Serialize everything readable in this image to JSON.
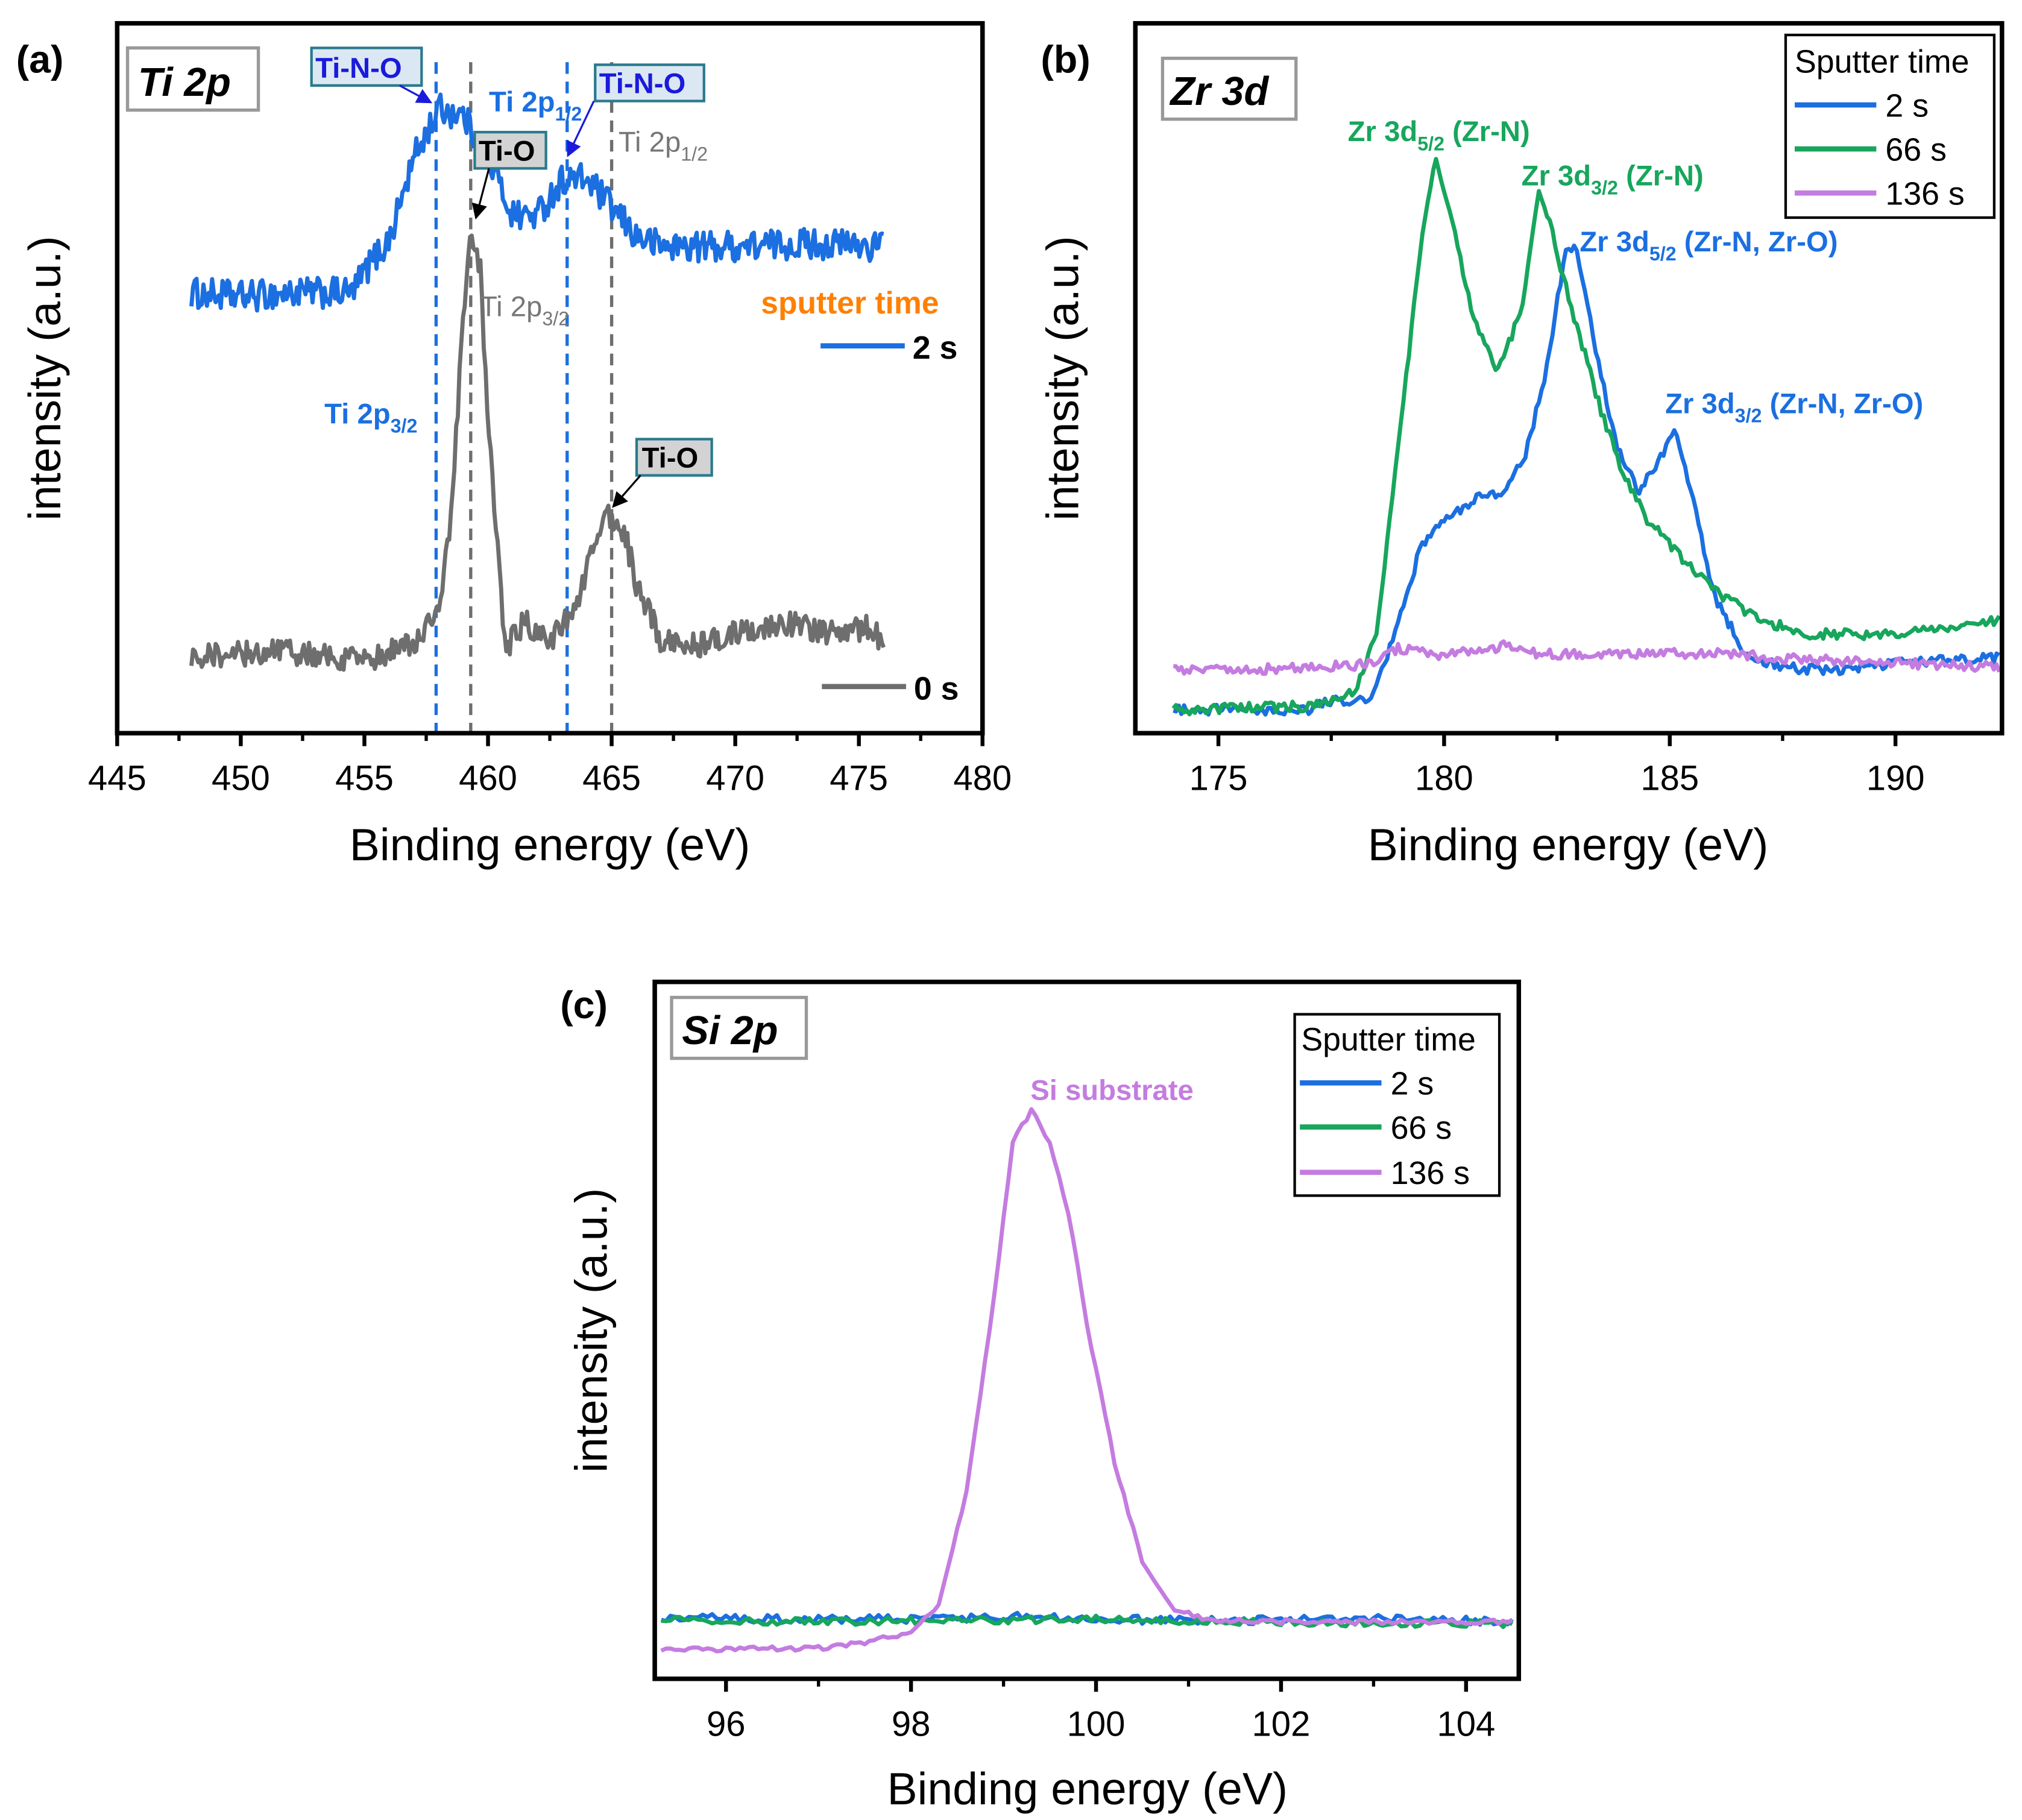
{
  "colors": {
    "blue": "#1b6fe0",
    "gray": "#6e6e6e",
    "green": "#17a65c",
    "purple": "#c47ce0",
    "orange": "#ff8000",
    "tag_blue": "#1a1adc",
    "tag_border": "#2a7a8c"
  },
  "chart_data": [
    {
      "id": "a",
      "type": "line",
      "panel_label": "(a)",
      "title": "Ti 2p",
      "xlabel": "Binding energy (eV)",
      "ylabel": "intensity (a.u.)",
      "xlim": [
        445,
        480
      ],
      "ylim": [
        0,
        100
      ],
      "xticks": [
        445,
        450,
        455,
        460,
        465,
        470,
        475,
        480
      ],
      "legend_title": "sputter time",
      "series": [
        {
          "name": "2 s",
          "color": "#1b6fe0",
          "noise": 2.2,
          "x": [
            448,
            450,
            452,
            454.5,
            455.2,
            456,
            457,
            458,
            459,
            460,
            461,
            462,
            463,
            464,
            465,
            466,
            467,
            470,
            473,
            476
          ],
          "y": [
            62,
            61.5,
            62,
            62,
            66,
            69.5,
            81,
            88,
            87,
            81,
            73,
            73,
            78,
            78,
            74,
            70,
            68.6,
            68.6,
            69,
            68.6
          ]
        },
        {
          "name": "0 s",
          "color": "#6e6e6e",
          "noise": 1.8,
          "x": [
            448,
            452,
            455,
            457,
            458,
            458.5,
            459,
            459.3,
            459.7,
            460,
            460.3,
            460.7,
            461.5,
            462.5,
            463.5,
            464,
            464.8,
            465.5,
            466,
            467,
            468,
            470,
            472,
            474,
            475.5,
            476
          ],
          "y": [
            11,
            11.5,
            10,
            13,
            16.6,
            30,
            58,
            72,
            65,
            43,
            30,
            12,
            15.7,
            13,
            17.5,
            23,
            31,
            28.5,
            21,
            13,
            12,
            14,
            15.7,
            14,
            15,
            12
          ]
        }
      ],
      "reference_lines": [
        {
          "x": 457.9,
          "color": "#1b6fe0"
        },
        {
          "x": 459.3,
          "color": "#6e6e6e"
        },
        {
          "x": 463.2,
          "color": "#1b6fe0"
        },
        {
          "x": 465.0,
          "color": "#6e6e6e"
        }
      ],
      "annotations": {
        "tino_1": "Ti-N-O",
        "tino_2": "Ti-N-O",
        "tio_1": "Ti-O",
        "tio_2": "Ti-O",
        "ti2p12_blue": {
          "main": "Ti 2p",
          "sub": "1/2"
        },
        "ti2p12_gray": {
          "main": "Ti 2p",
          "sub": "1/2"
        },
        "ti2p32_gray": {
          "main": "Ti 2p",
          "sub": "3/2"
        },
        "ti2p32_blue": {
          "main": "Ti 2p",
          "sub": "3/2"
        }
      }
    },
    {
      "id": "b",
      "type": "line",
      "panel_label": "(b)",
      "title": "Zr 3d",
      "xlabel": "Binding energy (eV)",
      "ylabel": "intensity (a.u.)",
      "xlim": [
        173.16,
        192.36
      ],
      "ylim": [
        0,
        100
      ],
      "xticks": [
        175,
        180,
        185,
        190
      ],
      "legend_title": "Sputter time",
      "series": [
        {
          "name": "2 s",
          "color": "#1b6fe0",
          "noise": 0.7,
          "x": [
            174,
            177,
            177.5,
            178.4,
            179,
            179.5,
            180,
            180.7,
            181.3,
            181.8,
            182.3,
            182.7,
            182.9,
            183.3,
            183.8,
            184.3,
            184.7,
            185.1,
            185.4,
            186,
            186.7,
            187.5,
            188.5,
            190,
            192.3
          ],
          "y": [
            3.3,
            3.3,
            4.7,
            4.7,
            15.7,
            26.6,
            30,
            33,
            34,
            39,
            52,
            68.6,
            68.6,
            56,
            41,
            34,
            37.6,
            43,
            36,
            19,
            11,
            9.3,
            8.8,
            9.9,
            10.6
          ]
        },
        {
          "name": "66 s",
          "color": "#17a65c",
          "noise": 0.7,
          "x": [
            174,
            177,
            178,
            178.5,
            179,
            179.5,
            179.8,
            180.2,
            180.6,
            181.2,
            181.7,
            182.1,
            182.3,
            182.6,
            183,
            183.5,
            184,
            184.5,
            185,
            185.5,
            186,
            187,
            188,
            190,
            192.3
          ],
          "y": [
            3.3,
            3.8,
            5.6,
            14,
            41,
            69.5,
            81.4,
            72,
            59.5,
            51,
            59.5,
            76,
            73,
            65,
            56,
            45,
            36,
            30,
            26.6,
            23,
            20,
            16,
            14,
            13.9,
            16
          ]
        },
        {
          "name": "136 s",
          "color": "#c47ce0",
          "noise": 0.7,
          "x": [
            174,
            177,
            178.5,
            179,
            180,
            181.5,
            182,
            184,
            186,
            188,
            190,
            192.3
          ],
          "y": [
            8.8,
            9.2,
            9.8,
            12,
            11,
            12.4,
            11.2,
            11.2,
            11.2,
            10.4,
            9.9,
            9.3
          ]
        }
      ],
      "annotations": {
        "zr52_zrn": {
          "main": "Zr 3d",
          "sub": "5/2",
          "tail": " (Zr-N)"
        },
        "zr32_zrn": {
          "main": "Zr 3d",
          "sub": "3/2",
          "tail": " (Zr-N)"
        },
        "zr52_zrno": {
          "main": "Zr 3d",
          "sub": "5/2",
          "tail": " (Zr-N, Zr-O)"
        },
        "zr32_zrno": {
          "main": "Zr 3d",
          "sub": "3/2",
          "tail": " (Zr-N, Zr-O)"
        }
      }
    },
    {
      "id": "c",
      "type": "line",
      "panel_label": "(c)",
      "title": "Si 2p",
      "xlabel": "Binding energy (eV)",
      "ylabel": "intensity (a.u.)",
      "xlim": [
        95.23,
        104.57
      ],
      "ylim": [
        0,
        100
      ],
      "xticks": [
        96,
        98,
        100,
        102,
        104
      ],
      "legend_title": "Sputter time",
      "series": [
        {
          "name": "2 s",
          "color": "#1b6fe0",
          "noise": 0.6,
          "x": [
            95.3,
            97,
            98,
            99,
            100,
            101,
            102,
            103,
            104.5
          ],
          "y": [
            8.8,
            8.5,
            8.6,
            8.9,
            8.6,
            8.3,
            8.4,
            8.6,
            8.2
          ]
        },
        {
          "name": "66 s",
          "color": "#17a65c",
          "noise": 0.5,
          "x": [
            95.3,
            97,
            98,
            99,
            100,
            101,
            102,
            103,
            104.5
          ],
          "y": [
            8.4,
            8.2,
            8.3,
            8.4,
            8.6,
            8.3,
            8.1,
            8.0,
            7.9
          ]
        },
        {
          "name": "136 s",
          "color": "#c47ce0",
          "noise": 0.35,
          "x": [
            95.3,
            97,
            97.5,
            98,
            98.3,
            98.6,
            98.9,
            99.1,
            99.3,
            99.5,
            99.7,
            99.9,
            100.2,
            100.5,
            100.8,
            101.2,
            102,
            104.5
          ],
          "y": [
            4.1,
            4.4,
            5.2,
            6.7,
            10.4,
            27,
            55,
            77,
            81.6,
            77,
            67,
            51,
            31,
            17,
            10.4,
            8.4,
            8.2,
            8.2
          ]
        }
      ],
      "annotations": {
        "si_substrate": "Si substrate"
      }
    }
  ]
}
